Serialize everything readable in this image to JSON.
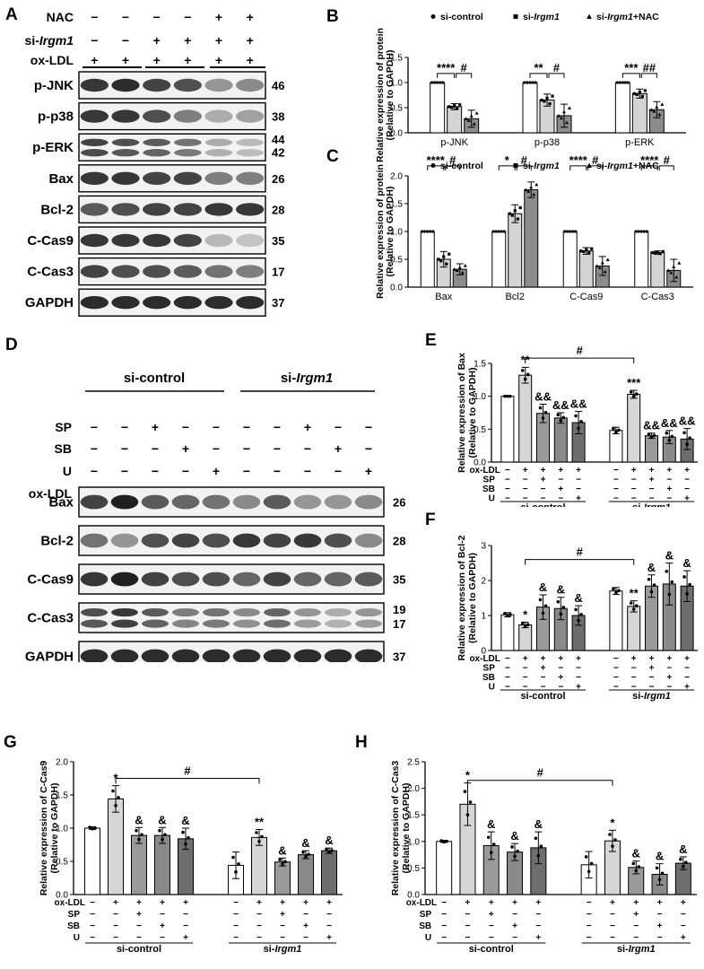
{
  "panel_letters": [
    "A",
    "B",
    "C",
    "D",
    "E",
    "F",
    "G",
    "H"
  ],
  "panelA": {
    "treatments": [
      {
        "label": "NAC",
        "signs": [
          "−",
          "−",
          "−",
          "−",
          "+",
          "+"
        ]
      },
      {
        "label": "si-Irgm1",
        "prefix": "si-",
        "italic": "Irgm1",
        "signs": [
          "−",
          "−",
          "+",
          "+",
          "+",
          "+"
        ]
      },
      {
        "label": "ox-LDL",
        "signs": [
          "+",
          "+",
          "+",
          "+",
          "+",
          "+"
        ]
      }
    ],
    "blots": [
      {
        "name": "p-JNK",
        "mw": [
          "46"
        ],
        "bands": 1,
        "intensity": [
          0.85,
          0.9,
          0.8,
          0.75,
          0.45,
          0.5
        ]
      },
      {
        "name": "p-p38",
        "mw": [
          "38"
        ],
        "bands": 1,
        "intensity": [
          0.85,
          0.85,
          0.75,
          0.55,
          0.35,
          0.4
        ]
      },
      {
        "name": "p-ERK",
        "mw": [
          "44",
          "42"
        ],
        "bands": 2,
        "intensity": [
          0.8,
          0.75,
          0.7,
          0.6,
          0.35,
          0.3
        ]
      },
      {
        "name": "Bax",
        "mw": [
          "26"
        ],
        "bands": 1,
        "intensity": [
          0.85,
          0.85,
          0.8,
          0.8,
          0.55,
          0.55
        ]
      },
      {
        "name": "Bcl-2",
        "mw": [
          "28"
        ],
        "bands": 1,
        "intensity": [
          0.7,
          0.75,
          0.8,
          0.8,
          0.85,
          0.85
        ]
      },
      {
        "name": "C-Cas9",
        "mw": [
          "35"
        ],
        "bands": 1,
        "intensity": [
          0.85,
          0.85,
          0.85,
          0.8,
          0.3,
          0.25
        ]
      },
      {
        "name": "C-Cas3",
        "mw": [
          "17"
        ],
        "bands": 1,
        "intensity": [
          0.8,
          0.75,
          0.75,
          0.7,
          0.6,
          0.55
        ]
      },
      {
        "name": "GAPDH",
        "mw": [
          "37"
        ],
        "bands": 1,
        "intensity": [
          0.9,
          0.9,
          0.9,
          0.9,
          0.9,
          0.9
        ]
      }
    ]
  },
  "panelD": {
    "groups": [
      {
        "label": "si-control"
      },
      {
        "label": "si-Irgm1",
        "prefix": "si-",
        "italic": "Irgm1"
      }
    ],
    "treatments": [
      {
        "label": "SP",
        "signs": [
          "−",
          "−",
          "+",
          "−",
          "−",
          "−",
          "−",
          "+",
          "−",
          "−"
        ]
      },
      {
        "label": "SB",
        "signs": [
          "−",
          "−",
          "−",
          "+",
          "−",
          "−",
          "−",
          "−",
          "+",
          "−"
        ]
      },
      {
        "label": "U",
        "signs": [
          "−",
          "−",
          "−",
          "−",
          "+",
          "−",
          "−",
          "−",
          "−",
          "+"
        ]
      },
      {
        "label": "ox-LDL",
        "signs": [
          "−",
          "+",
          "+",
          "+",
          "+",
          "−",
          "+",
          "+",
          "+",
          "+"
        ]
      }
    ],
    "blots": [
      {
        "name": "Bax",
        "mw": [
          "26"
        ],
        "bands": 1,
        "intensity": [
          0.8,
          0.95,
          0.7,
          0.65,
          0.6,
          0.5,
          0.7,
          0.45,
          0.45,
          0.5
        ]
      },
      {
        "name": "Bcl-2",
        "mw": [
          "28"
        ],
        "bands": 1,
        "intensity": [
          0.6,
          0.45,
          0.75,
          0.8,
          0.75,
          0.85,
          0.8,
          0.85,
          0.75,
          0.5
        ]
      },
      {
        "name": "C-Cas9",
        "mw": [
          "35"
        ],
        "bands": 1,
        "intensity": [
          0.85,
          0.95,
          0.8,
          0.75,
          0.75,
          0.65,
          0.8,
          0.65,
          0.65,
          0.7
        ]
      },
      {
        "name": "C-Cas3",
        "mw": [
          "19",
          "17"
        ],
        "bands": 2,
        "intensity": [
          0.75,
          0.85,
          0.7,
          0.55,
          0.6,
          0.5,
          0.65,
          0.45,
          0.35,
          0.45
        ]
      },
      {
        "name": "GAPDH",
        "mw": [
          "37"
        ],
        "bands": 1,
        "intensity": [
          0.9,
          0.9,
          0.9,
          0.9,
          0.9,
          0.9,
          0.9,
          0.9,
          0.9,
          0.9
        ]
      }
    ]
  },
  "chart_data": [
    {
      "id": "B",
      "type": "bar",
      "ylabel": "Relative expression of protein (Relative to GAPDH)",
      "ylim": [
        0,
        1.5
      ],
      "yticks": [
        "0.0",
        "0.5",
        "1.0",
        "1.5"
      ],
      "categories": [
        "p-JNK",
        "p-p38",
        "p-ERK"
      ],
      "series": [
        {
          "name": "si-control",
          "values": [
            1.0,
            1.0,
            1.0
          ],
          "err": [
            0.0,
            0.0,
            0.0
          ]
        },
        {
          "name": "si-Irgm1",
          "values": [
            0.52,
            0.65,
            0.78
          ],
          "err": [
            0.06,
            0.12,
            0.09
          ]
        },
        {
          "name": "si-Irgm1+NAC",
          "values": [
            0.28,
            0.34,
            0.46
          ],
          "err": [
            0.17,
            0.23,
            0.16
          ]
        }
      ],
      "annotations": [
        [
          "****",
          "#"
        ],
        [
          "**",
          "#"
        ],
        [
          "***",
          "##"
        ]
      ]
    },
    {
      "id": "C",
      "type": "bar",
      "ylabel": "Relative expression of protein (Relative to GAPDH)",
      "ylim": [
        0,
        2.0
      ],
      "yticks": [
        "0.0",
        "0.5",
        "1.0",
        "1.5",
        "2.0"
      ],
      "categories": [
        "Bax",
        "Bcl2",
        "C-Cas9",
        "C-Cas3"
      ],
      "series": [
        {
          "name": "si-control",
          "values": [
            1.0,
            1.0,
            1.0,
            1.0
          ],
          "err": [
            0.0,
            0.0,
            0.0,
            0.0
          ]
        },
        {
          "name": "si-Irgm1",
          "values": [
            0.5,
            1.32,
            0.65,
            0.62
          ],
          "err": [
            0.14,
            0.16,
            0.06,
            0.03
          ]
        },
        {
          "name": "si-Irgm1+NAC",
          "values": [
            0.32,
            1.75,
            0.38,
            0.3
          ],
          "err": [
            0.1,
            0.14,
            0.17,
            0.2
          ]
        }
      ],
      "annotations": [
        [
          "****",
          "#"
        ],
        [
          "*",
          "#"
        ],
        [
          "****",
          "#"
        ],
        [
          "****",
          "#"
        ]
      ]
    },
    {
      "id": "E",
      "type": "bar",
      "ylabel": "Relative expression of Bax (Relative to GAPDH)",
      "ylim": [
        0,
        1.5
      ],
      "yticks": [
        "0.0",
        "0.5",
        "1.0",
        "1.5"
      ],
      "groups": [
        "si-control",
        "si-Irgm1"
      ],
      "values": [
        1.0,
        1.32,
        0.74,
        0.67,
        0.6,
        0.48,
        1.03,
        0.4,
        0.38,
        0.35
      ],
      "err": [
        0.0,
        0.12,
        0.14,
        0.08,
        0.17,
        0.05,
        0.06,
        0.04,
        0.1,
        0.16
      ],
      "sig": [
        "",
        "**",
        "&&",
        "&&",
        "&&",
        "",
        "***",
        "&&",
        "&&",
        "&&"
      ],
      "bridge": "#"
    },
    {
      "id": "F",
      "type": "bar",
      "ylabel": "Relative expression of Bcl-2 (Relative to GAPDH)",
      "ylim": [
        0,
        3
      ],
      "yticks": [
        "0",
        "1",
        "2",
        "3"
      ],
      "groups": [
        "si-control",
        "si-Irgm1"
      ],
      "values": [
        1.02,
        0.73,
        1.24,
        1.2,
        1.0,
        1.7,
        1.26,
        1.84,
        1.9,
        1.84
      ],
      "err": [
        0.06,
        0.08,
        0.35,
        0.32,
        0.28,
        0.1,
        0.16,
        0.32,
        0.6,
        0.44
      ],
      "sig": [
        "",
        "*",
        "&",
        "&",
        "&",
        "",
        "**",
        "&",
        "&",
        "&"
      ],
      "bridge": "#"
    },
    {
      "id": "G",
      "type": "bar",
      "ylabel": "Relative expression of C-Cas9 (Relative to GAPDH)",
      "ylim": [
        0,
        2.0
      ],
      "yticks": [
        "0.0",
        "0.5",
        "1.0",
        "1.5",
        "2.0"
      ],
      "groups": [
        "si-control",
        "si-Irgm1"
      ],
      "values": [
        1.0,
        1.44,
        0.89,
        0.89,
        0.84,
        0.44,
        0.86,
        0.49,
        0.6,
        0.66
      ],
      "err": [
        0.02,
        0.2,
        0.12,
        0.12,
        0.16,
        0.2,
        0.12,
        0.06,
        0.06,
        0.04
      ],
      "sig": [
        "",
        "*",
        "&",
        "&",
        "&",
        "",
        "**",
        "&",
        "&",
        "&"
      ],
      "bridge": "#"
    },
    {
      "id": "H",
      "type": "bar",
      "ylabel": "Relative expression of C-Cas3 (Relative to GAPDH)",
      "ylim": [
        0,
        2.5
      ],
      "yticks": [
        "0.0",
        "0.5",
        "1.0",
        "1.5",
        "2.0",
        "2.5"
      ],
      "groups": [
        "si-control",
        "si-Irgm1"
      ],
      "values": [
        1.0,
        1.7,
        0.92,
        0.8,
        0.88,
        0.56,
        1.01,
        0.51,
        0.38,
        0.59
      ],
      "err": [
        0.02,
        0.4,
        0.26,
        0.16,
        0.3,
        0.25,
        0.2,
        0.12,
        0.2,
        0.12
      ],
      "sig": [
        "",
        "*",
        "&",
        "&",
        "&",
        "",
        "*",
        "&",
        "&",
        "&"
      ],
      "bridge": "#"
    }
  ],
  "condition_rows": {
    "labels": [
      "ox-LDL",
      "SP",
      "SB",
      "U"
    ],
    "signs": [
      [
        "−",
        "+",
        "+",
        "+",
        "+",
        "−",
        "+",
        "+",
        "+",
        "+"
      ],
      [
        "−",
        "−",
        "+",
        "−",
        "−",
        "−",
        "−",
        "+",
        "−",
        "−"
      ],
      [
        "−",
        "−",
        "−",
        "+",
        "−",
        "−",
        "−",
        "−",
        "+",
        "−"
      ],
      [
        "−",
        "−",
        "−",
        "−",
        "+",
        "−",
        "−",
        "−",
        "−",
        "+"
      ]
    ]
  },
  "colors": {
    "series": [
      "#ffffff",
      "#d4d4d4",
      "#8c8c8c"
    ],
    "bars10": [
      "#ffffff",
      "#d6d6d6",
      "#9a9a9a",
      "#8a8a8a",
      "#6e6e6e",
      "#ffffff",
      "#d6d6d6",
      "#9a9a9a",
      "#8a8a8a",
      "#6e6e6e"
    ]
  }
}
